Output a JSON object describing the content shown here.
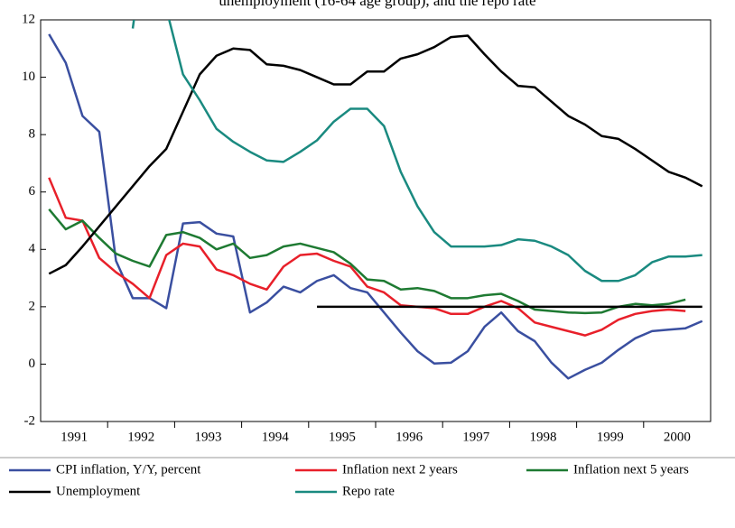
{
  "chart_data": {
    "type": "line",
    "title": "unemployment (16-64 age group), and the repo rate",
    "x": [
      1991.125,
      1991.375,
      1991.625,
      1991.875,
      1992.125,
      1992.375,
      1992.625,
      1992.875,
      1993.125,
      1993.375,
      1993.625,
      1993.875,
      1994.125,
      1994.375,
      1994.625,
      1994.875,
      1995.125,
      1995.375,
      1995.625,
      1995.875,
      1996.125,
      1996.375,
      1996.625,
      1996.875,
      1997.125,
      1997.375,
      1997.625,
      1997.875,
      1998.125,
      1998.375,
      1998.625,
      1998.875,
      1999.125,
      1999.375,
      1999.625,
      1999.875,
      2000.125,
      2000.375,
      2000.625,
      2000.875
    ],
    "xlim": [
      1991,
      2001
    ],
    "xticks": [
      {
        "value": 1991.5,
        "label": "1991"
      },
      {
        "value": 1992.5,
        "label": "1992"
      },
      {
        "value": 1993.5,
        "label": "1993"
      },
      {
        "value": 1994.5,
        "label": "1994"
      },
      {
        "value": 1995.5,
        "label": "1995"
      },
      {
        "value": 1996.5,
        "label": "1996"
      },
      {
        "value": 1997.5,
        "label": "1997"
      },
      {
        "value": 1998.5,
        "label": "1998"
      },
      {
        "value": 1999.5,
        "label": "1999"
      },
      {
        "value": 2000.5,
        "label": "2000"
      }
    ],
    "ylim": [
      -2,
      12
    ],
    "yticks": [
      -2,
      0,
      2,
      4,
      6,
      8,
      10,
      12
    ],
    "series": [
      {
        "name": "CPI inflation, Y/Y, percent",
        "color": "#3a4fa0",
        "values": [
          11.5,
          10.5,
          8.65,
          8.1,
          3.6,
          2.3,
          2.3,
          1.95,
          4.9,
          4.95,
          4.55,
          4.45,
          1.8,
          2.15,
          2.7,
          2.5,
          2.9,
          3.1,
          2.65,
          2.5,
          1.8,
          1.1,
          0.45,
          0.02,
          0.05,
          0.45,
          1.3,
          1.8,
          1.15,
          0.8,
          0.05,
          -0.5,
          -0.2,
          0.05,
          0.5,
          0.9,
          1.15,
          1.2,
          1.25,
          1.5
        ]
      },
      {
        "name": "Inflation next 2 years",
        "color": "#e8202a",
        "values": [
          6.5,
          5.1,
          5.0,
          3.7,
          3.2,
          2.8,
          2.3,
          3.8,
          4.2,
          4.1,
          3.3,
          3.1,
          2.8,
          2.6,
          3.4,
          3.8,
          3.85,
          3.6,
          3.4,
          2.7,
          2.5,
          2.05,
          2.0,
          1.95,
          1.75,
          1.75,
          2.0,
          2.2,
          1.95,
          1.45,
          1.3,
          1.15,
          1.0,
          1.2,
          1.55,
          1.75,
          1.85,
          1.9,
          1.85,
          null
        ]
      },
      {
        "name": "Inflation next 5 years",
        "color": "#1e7a32",
        "values": [
          5.4,
          4.7,
          5.0,
          4.4,
          3.85,
          3.6,
          3.4,
          4.5,
          4.6,
          4.4,
          4.0,
          4.2,
          3.7,
          3.8,
          4.1,
          4.2,
          4.05,
          3.9,
          3.5,
          2.95,
          2.9,
          2.6,
          2.65,
          2.55,
          2.3,
          2.3,
          2.4,
          2.45,
          2.2,
          1.9,
          1.85,
          1.8,
          1.78,
          1.8,
          2.0,
          2.1,
          2.05,
          2.1,
          2.25,
          null
        ]
      },
      {
        "name": "Unemployment",
        "color": "#000000",
        "values": [
          3.15,
          3.45,
          4.1,
          4.8,
          5.5,
          6.2,
          6.9,
          7.5,
          8.8,
          10.1,
          10.75,
          11.0,
          10.95,
          10.45,
          10.4,
          10.25,
          10.0,
          9.75,
          9.75,
          10.2,
          10.2,
          10.65,
          10.8,
          11.05,
          11.4,
          11.45,
          10.8,
          10.2,
          9.7,
          9.65,
          9.15,
          8.65,
          8.35,
          7.95,
          7.85,
          7.5,
          7.1,
          6.7,
          6.5,
          6.2
        ]
      },
      {
        "name": "Repo rate",
        "color": "#1a8a80",
        "values": [
          null,
          null,
          null,
          null,
          null,
          11.7,
          16,
          12.4,
          10.1,
          9.2,
          8.2,
          7.75,
          7.4,
          7.1,
          7.05,
          7.4,
          7.8,
          8.45,
          8.9,
          8.9,
          8.3,
          6.7,
          5.5,
          4.6,
          4.1,
          4.1,
          4.1,
          4.15,
          4.35,
          4.3,
          4.1,
          3.8,
          3.25,
          2.9,
          2.9,
          3.1,
          3.55,
          3.75,
          3.75,
          3.8
        ]
      },
      {
        "color": "#000000",
        "values": [
          null,
          null,
          null,
          null,
          null,
          null,
          null,
          null,
          null,
          null,
          null,
          null,
          null,
          null,
          null,
          null,
          2,
          2,
          2,
          2,
          2,
          2,
          2,
          2,
          2,
          2,
          2,
          2,
          2,
          2,
          2,
          2,
          2,
          2,
          2,
          2,
          2,
          2,
          2,
          2
        ]
      }
    ]
  }
}
